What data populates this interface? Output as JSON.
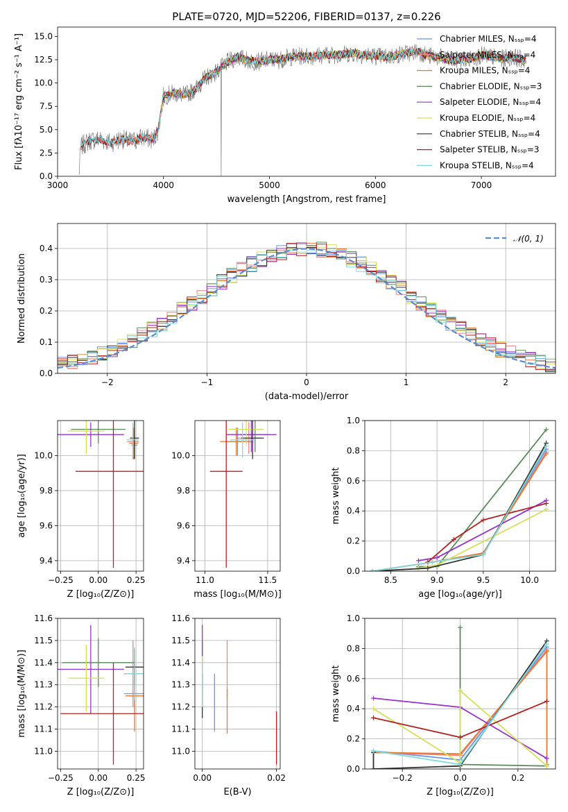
{
  "figure_title": "PLATE=0720, MJD=52206, FIBERID=0137, z=0.226",
  "colors": {
    "chabrier_miles": "#6495ED",
    "salpeter_miles": "#F08080",
    "kroupa_miles": "#E8792F",
    "chabrier_elodie": "#5A8A5A",
    "salpeter_elodie": "#9932CC",
    "kroupa_elodie": "#D4E157",
    "chabrier_stelib": "#333333",
    "salpeter_stelib": "#B22222",
    "kroupa_stelib": "#7FDBDB",
    "data": "#808080",
    "normal": "#5B8BD0",
    "grid": "#b0b0b0"
  },
  "chart_data": [
    {
      "id": "spectrum",
      "type": "line",
      "title": "PLATE=0720, MJD=52206, FIBERID=0137, z=0.226",
      "xlabel": "wavelength [Angstrom, rest frame]",
      "ylabel": "Flux [fλ10⁻¹⁷ erg cm⁻² s⁻¹ A⁻¹]",
      "xlim": [
        3000,
        7700
      ],
      "ylim": [
        0,
        16
      ],
      "x_ticks": [
        "3000",
        "4000",
        "5000",
        "6000",
        "7000"
      ],
      "y_ticks": [
        "0.0",
        "2.5",
        "5.0",
        "7.5",
        "10.0",
        "12.5",
        "15.0"
      ],
      "grid": false,
      "legend_position": "right",
      "legend": [
        "Chabrier MILES, Nₛₛₚ=4",
        "Salpeter MILES, Nₛₛₚ=4",
        "Kroupa MILES, Nₛₛₚ=4",
        "Chabrier ELODIE, Nₛₛₚ=3",
        "Salpeter ELODIE, Nₛₛₚ=4",
        "Kroupa ELODIE, Nₛₛₚ=4",
        "Chabrier STELIB, Nₛₛₚ=4",
        "Salpeter STELIB, Nₛₛₚ=3",
        "Kroupa STELIB, Nₛₛₚ=4"
      ],
      "data_series": {
        "x": [
          3200,
          3220,
          3300,
          3400,
          3500,
          3600,
          3700,
          3800,
          3900,
          3950,
          4000,
          4100,
          4200,
          4300,
          4400,
          4500,
          4600,
          4700,
          4800,
          4900,
          5000,
          5100,
          5200,
          5300,
          5400,
          5500,
          5600,
          5700,
          5800,
          5900,
          6000,
          6100,
          6200,
          6300,
          6400,
          6500,
          6600,
          6700,
          6800,
          6900,
          7000,
          7100,
          7200,
          7300,
          7400
        ],
        "y": [
          0,
          3.2,
          3.8,
          4.0,
          3.6,
          4.0,
          3.7,
          4.2,
          3.9,
          5.0,
          8.6,
          8.9,
          8.7,
          9.3,
          10.6,
          11.2,
          12.2,
          12.8,
          12.4,
          12.3,
          12.5,
          12.5,
          12.8,
          12.9,
          12.9,
          13.0,
          13.0,
          13.1,
          13.2,
          13.0,
          12.9,
          12.8,
          13.0,
          13.2,
          13.4,
          12.9,
          12.8,
          12.4,
          12.5,
          12.6,
          13.0,
          12.8,
          12.6,
          12.8,
          12.5
        ]
      }
    },
    {
      "id": "residuals",
      "type": "step-histogram",
      "xlabel": "(data-model)/error",
      "ylabel": "Normed distribution",
      "xlim": [
        -2.5,
        2.5
      ],
      "ylim": [
        0,
        0.48
      ],
      "x_ticks": [
        "−2",
        "−1",
        "0",
        "1",
        "2"
      ],
      "y_ticks": [
        "0.0",
        "0.1",
        "0.2",
        "0.3",
        "0.4"
      ],
      "grid": true,
      "legend": [
        "𝒩(0, 1)"
      ],
      "legend_position": "top-right",
      "bin_width": 0.1
    },
    {
      "id": "age-vs-Z",
      "type": "errorbar",
      "xlabel": "Z [log₁₀(Z/Z⊙)]",
      "ylabel": "age  [log₁₀(age/yr)]",
      "xlim": [
        -0.27,
        0.3
      ],
      "ylim": [
        9.34,
        10.2
      ],
      "x_ticks": [
        "−0.25",
        "0.00",
        "0.25"
      ],
      "y_ticks": [
        "9.4",
        "9.6",
        "9.8",
        "10.0"
      ],
      "grid": true,
      "points": [
        {
          "series": "Chabrier MILES",
          "x": 0.24,
          "y": 10.06,
          "xerr": 0.02,
          "yerr": 0.08
        },
        {
          "series": "Salpeter MILES",
          "x": 0.23,
          "y": 10.08,
          "xerr": 0.04,
          "yerr": 0.1
        },
        {
          "series": "Kroupa MILES",
          "x": 0.235,
          "y": 10.07,
          "xerr": 0.03,
          "yerr": 0.09
        },
        {
          "series": "Chabrier ELODIE",
          "x": 0.0,
          "y": 10.15,
          "xerr": 0.18,
          "yerr": 0.08
        },
        {
          "series": "Salpeter ELODIE",
          "x": -0.05,
          "y": 10.12,
          "xerr": 0.22,
          "yerr": 0.07
        },
        {
          "series": "Kroupa ELODIE",
          "x": -0.08,
          "y": 10.14,
          "xerr": 0.12,
          "yerr": 0.13
        },
        {
          "series": "Chabrier STELIB",
          "x": 0.24,
          "y": 10.1,
          "xerr": 0.03,
          "yerr": 0.12
        },
        {
          "series": "Salpeter STELIB",
          "x": 0.1,
          "y": 9.91,
          "xerr": 0.25,
          "yerr": 0.55
        },
        {
          "series": "Kroupa STELIB",
          "x": 0.23,
          "y": 10.09,
          "xerr": 0.04,
          "yerr": 0.1
        }
      ]
    },
    {
      "id": "age-vs-mass",
      "type": "errorbar",
      "xlabel": "mass [log₁₀(M/M⊙)]",
      "xlim": [
        10.92,
        11.6
      ],
      "ylim": [
        9.34,
        10.2
      ],
      "x_ticks": [
        "11.0",
        "11.5"
      ],
      "y_ticks": [
        "9.4",
        "9.6",
        "9.8",
        "10.0"
      ],
      "grid": true,
      "points": [
        {
          "series": "Chabrier MILES",
          "x": 11.26,
          "y": 10.08,
          "xerr": 0.1,
          "yerr": 0.08
        },
        {
          "series": "Salpeter MILES",
          "x": 11.35,
          "y": 10.1,
          "xerr": 0.1,
          "yerr": 0.09
        },
        {
          "series": "Kroupa MILES",
          "x": 11.25,
          "y": 10.08,
          "xerr": 0.13,
          "yerr": 0.08
        },
        {
          "series": "Chabrier ELODIE",
          "x": 11.4,
          "y": 10.12,
          "xerr": 0.12,
          "yerr": 0.1
        },
        {
          "series": "Salpeter ELODIE",
          "x": 11.37,
          "y": 10.12,
          "xerr": 0.2,
          "yerr": 0.1
        },
        {
          "series": "Kroupa ELODIE",
          "x": 11.33,
          "y": 10.15,
          "xerr": 0.14,
          "yerr": 0.09
        },
        {
          "series": "Chabrier STELIB",
          "x": 11.38,
          "y": 10.1,
          "xerr": 0.09,
          "yerr": 0.12
        },
        {
          "series": "Salpeter STELIB",
          "x": 11.17,
          "y": 9.91,
          "xerr": 0.13,
          "yerr": 0.55
        },
        {
          "series": "Kroupa STELIB",
          "x": 11.3,
          "y": 10.09,
          "xerr": 0.1,
          "yerr": 0.1
        }
      ]
    },
    {
      "id": "weight-vs-age",
      "type": "line",
      "xlabel": "age  [log₁₀(age/yr)]",
      "ylabel": "mass weight",
      "xlim": [
        8.22,
        10.28
      ],
      "ylim": [
        0,
        1.0
      ],
      "x_ticks": [
        "8.5",
        "9.0",
        "9.5",
        "10.0"
      ],
      "y_ticks": [
        "0.0",
        "0.2",
        "0.4",
        "0.6",
        "0.8",
        "1.0"
      ],
      "grid": true,
      "series": [
        {
          "name": "Chabrier MILES",
          "x": [
            8.3,
            8.95,
            9.5,
            10.18
          ],
          "values": [
            0.0,
            0.06,
            0.12,
            0.81
          ]
        },
        {
          "name": "Salpeter MILES",
          "x": [
            8.3,
            8.95,
            9.5,
            10.18
          ],
          "values": [
            0.0,
            0.06,
            0.12,
            0.79
          ]
        },
        {
          "name": "Kroupa MILES",
          "x": [
            8.3,
            8.95,
            9.5,
            10.18
          ],
          "values": [
            0.0,
            0.06,
            0.12,
            0.78
          ]
        },
        {
          "name": "Chabrier ELODIE",
          "x": [
            8.8,
            9.0,
            10.18
          ],
          "values": [
            0.03,
            0.03,
            0.94
          ]
        },
        {
          "name": "Salpeter ELODIE",
          "x": [
            8.8,
            9.0,
            10.18
          ],
          "values": [
            0.07,
            0.09,
            0.47
          ]
        },
        {
          "name": "Kroupa ELODIE",
          "x": [
            8.8,
            9.0,
            10.18
          ],
          "values": [
            0.02,
            0.04,
            0.41
          ]
        },
        {
          "name": "Chabrier STELIB",
          "x": [
            8.3,
            8.9,
            9.5,
            10.18
          ],
          "values": [
            0.0,
            0.02,
            0.11,
            0.85
          ]
        },
        {
          "name": "Salpeter STELIB",
          "x": [
            8.9,
            9.18,
            9.5,
            10.18
          ],
          "values": [
            0.06,
            0.21,
            0.34,
            0.45
          ]
        },
        {
          "name": "Kroupa STELIB",
          "x": [
            8.3,
            8.95,
            9.5,
            10.18
          ],
          "values": [
            0.0,
            0.06,
            0.11,
            0.83
          ]
        }
      ]
    },
    {
      "id": "mass-vs-Z",
      "type": "errorbar",
      "xlabel": "Z [log₁₀(Z/Z⊙)]",
      "ylabel": "mass [log₁₀(M/M⊙)]",
      "xlim": [
        -0.27,
        0.3
      ],
      "ylim": [
        10.92,
        11.6
      ],
      "x_ticks": [
        "−0.25",
        "0.00",
        "0.25"
      ],
      "y_ticks": [
        "11.0",
        "11.1",
        "11.2",
        "11.3",
        "11.4",
        "11.5",
        "11.6"
      ],
      "grid": true,
      "points": [
        {
          "series": "Chabrier MILES",
          "x": 0.24,
          "y": 11.26,
          "xerr": 0.07,
          "yerr": 0.08
        },
        {
          "series": "Salpeter MILES",
          "x": 0.23,
          "y": 11.35,
          "xerr": 0.06,
          "yerr": 0.15
        },
        {
          "series": "Kroupa MILES",
          "x": 0.24,
          "y": 11.25,
          "xerr": 0.06,
          "yerr": 0.16
        },
        {
          "series": "Chabrier ELODIE",
          "x": 0.0,
          "y": 11.4,
          "xerr": 0.24,
          "yerr": 0.11
        },
        {
          "series": "Salpeter ELODIE",
          "x": -0.05,
          "y": 11.37,
          "xerr": 0.22,
          "yerr": 0.2
        },
        {
          "series": "Kroupa ELODIE",
          "x": -0.08,
          "y": 11.33,
          "xerr": 0.12,
          "yerr": 0.15
        },
        {
          "series": "Chabrier STELIB",
          "x": 0.24,
          "y": 11.38,
          "xerr": 0.06,
          "yerr": 0.08
        },
        {
          "series": "Salpeter STELIB",
          "x": 0.1,
          "y": 11.17,
          "xerr": 0.35,
          "yerr": 0.23
        },
        {
          "series": "Kroupa STELIB",
          "x": 0.24,
          "y": 11.35,
          "xerr": 0.06,
          "yerr": 0.12
        }
      ]
    },
    {
      "id": "mass-vs-ebv",
      "type": "errorbar",
      "xlabel": "E(B-V)",
      "xlim": [
        -0.002,
        0.021
      ],
      "ylim": [
        10.92,
        11.6
      ],
      "x_ticks": [
        "0.00",
        "0.02"
      ],
      "y_ticks": [
        "11.0",
        "11.1",
        "11.2",
        "11.3",
        "11.4",
        "11.5",
        "11.6"
      ],
      "grid": true,
      "points": [
        {
          "series": "Chabrier MILES",
          "x": 0.0033,
          "y": 11.22,
          "xerr": 0,
          "yerr": 0.13
        },
        {
          "series": "Salpeter MILES",
          "x": 0.0067,
          "y": 11.37,
          "xerr": 0,
          "yerr": 0.13
        },
        {
          "series": "Kroupa MILES",
          "x": 0.0067,
          "y": 11.18,
          "xerr": 0,
          "yerr": 0.1
        },
        {
          "series": "Chabrier ELODIE",
          "x": 0.0,
          "y": 11.4,
          "xerr": 0,
          "yerr": 0.1
        },
        {
          "series": "Salpeter ELODIE",
          "x": 0.0,
          "y": 11.45,
          "xerr": 0,
          "yerr": 0.12
        },
        {
          "series": "Kroupa ELODIE",
          "x": 0.0,
          "y": 11.33,
          "xerr": 0,
          "yerr": 0.1
        },
        {
          "series": "Chabrier STELIB",
          "x": 0.0,
          "y": 11.25,
          "xerr": 0,
          "yerr": 0.1
        },
        {
          "series": "Salpeter STELIB",
          "x": 0.02,
          "y": 11.06,
          "xerr": 0,
          "yerr": 0.12
        },
        {
          "series": "Kroupa STELIB",
          "x": 0.0,
          "y": 11.3,
          "xerr": 0,
          "yerr": 0.1
        }
      ]
    },
    {
      "id": "weight-vs-Z",
      "type": "line",
      "xlabel": "Z [log₁₀(Z/Z⊙)]",
      "ylabel": "mass weight",
      "xlim": [
        -0.33,
        0.33
      ],
      "ylim": [
        0,
        1.0
      ],
      "x_ticks": [
        "−0.2",
        "0.0",
        "0.2"
      ],
      "y_ticks": [
        "0.0",
        "0.2",
        "0.4",
        "0.6",
        "0.8",
        "1.0"
      ],
      "grid": true,
      "series": [
        {
          "name": "Chabrier MILES",
          "x": [
            -0.3,
            0.0,
            0.3
          ],
          "values": [
            0.12,
            0.06,
            0.81
          ]
        },
        {
          "name": "Salpeter MILES",
          "x": [
            -0.3,
            0.0,
            0.3
          ],
          "values": [
            0.11,
            0.09,
            0.79
          ]
        },
        {
          "name": "Kroupa MILES",
          "x": [
            -0.3,
            0.0,
            0.3,
            0.3
          ],
          "values": [
            0.11,
            0.1,
            0.78,
            0.03
          ]
        },
        {
          "name": "Chabrier ELODIE",
          "x": [
            0.0,
            0.0,
            0.3
          ],
          "values": [
            0.94,
            0.03,
            0.02
          ]
        },
        {
          "name": "Salpeter ELODIE",
          "x": [
            -0.3,
            0.0,
            0.3
          ],
          "values": [
            0.47,
            0.41,
            0.07
          ]
        },
        {
          "name": "Kroupa ELODIE",
          "x": [
            -0.3,
            0.0,
            0.0,
            0.3
          ],
          "values": [
            0.4,
            0.04,
            0.52,
            0.02
          ]
        },
        {
          "name": "Chabrier STELIB",
          "x": [
            -0.3,
            -0.3,
            0.0,
            0.3
          ],
          "values": [
            0.11,
            0.0,
            0.02,
            0.85
          ]
        },
        {
          "name": "Salpeter STELIB",
          "x": [
            -0.3,
            0.0,
            0.3
          ],
          "values": [
            0.34,
            0.21,
            0.45
          ]
        },
        {
          "name": "Kroupa STELIB",
          "x": [
            -0.3,
            0.0,
            0.3
          ],
          "values": [
            0.12,
            0.03,
            0.83
          ]
        }
      ]
    }
  ]
}
